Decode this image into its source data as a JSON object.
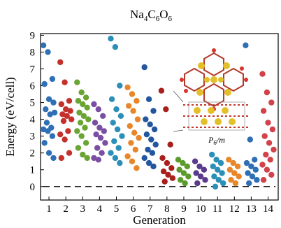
{
  "chart_data": {
    "type": "scatter",
    "title": "Na4C6O6",
    "xlabel": "Generation",
    "ylabel": "Energy (eV/cell)",
    "x_ticks": [
      1,
      2,
      3,
      4,
      5,
      6,
      7,
      8,
      9,
      10,
      11,
      12,
      13,
      14
    ],
    "y_ticks": [
      0,
      1,
      2,
      3,
      4,
      5,
      6,
      7,
      8,
      9
    ],
    "xlim": [
      0.5,
      14.6
    ],
    "ylim": [
      -0.8,
      9.1
    ],
    "reference_line": {
      "y": 0,
      "style": "dashed"
    },
    "inset_label": "P6/m",
    "grid": false,
    "series": [
      {
        "generation": 1,
        "color": "#2f6fb5",
        "energies": [
          8.4,
          8.0,
          6.4,
          6.1,
          5.2,
          5.0,
          4.6,
          4.3,
          4.4,
          3.8,
          3.5,
          3.4,
          3.3,
          3.0,
          2.6,
          2.0,
          1.7
        ]
      },
      {
        "generation": 2,
        "color": "#c4302b",
        "energies": [
          7.4,
          6.2,
          5.1,
          4.9,
          4.6,
          4.5,
          4.3,
          4.2,
          4.0,
          3.9,
          3.3,
          3.1,
          2.8,
          2.0,
          1.7
        ]
      },
      {
        "generation": 3,
        "color": "#6aa533",
        "energies": [
          6.2,
          5.6,
          5.3,
          5.1,
          4.9,
          4.7,
          4.4,
          4.2,
          4.0,
          3.8,
          3.5,
          3.3,
          3.0,
          2.6,
          2.3,
          1.9,
          1.7
        ]
      },
      {
        "generation": 4,
        "color": "#7a4fa3",
        "energies": [
          4.9,
          4.6,
          4.2,
          3.8,
          3.5,
          3.3,
          3.1,
          2.9,
          2.6,
          2.3,
          2.0,
          1.7,
          1.6
        ]
      },
      {
        "generation": 5,
        "color": "#2b8fb8",
        "energies": [
          8.8,
          8.3,
          6.0,
          5.2,
          4.6,
          4.2,
          3.8,
          3.4,
          3.0,
          2.7,
          2.3,
          2.0,
          1.7,
          1.4
        ]
      },
      {
        "generation": 6,
        "color": "#e8862a",
        "energies": [
          5.9,
          5.5,
          5.1,
          4.8,
          4.5,
          4.0,
          3.6,
          3.2,
          2.9,
          2.6,
          2.2,
          1.8,
          1.5,
          1.1
        ]
      },
      {
        "generation": 7,
        "color": "#22569e",
        "energies": [
          7.1,
          5.2,
          4.5,
          4.0,
          3.7,
          3.4,
          3.1,
          2.8,
          2.5,
          2.2,
          2.0,
          1.7,
          1.4,
          1.2
        ]
      },
      {
        "generation": 8,
        "color": "#a8201b",
        "energies": [
          5.7,
          4.6,
          2.5,
          1.7,
          1.4,
          1.1,
          0.9,
          0.7,
          0.5,
          0.3
        ]
      },
      {
        "generation": 9,
        "color": "#5b9b2b",
        "energies": [
          1.6,
          1.4,
          1.2,
          1.0,
          0.8,
          0.6,
          0.4,
          0.2
        ]
      },
      {
        "generation": 10,
        "color": "#5a3a8c",
        "energies": [
          1.5,
          1.2,
          1.0,
          0.8,
          0.6,
          0.4,
          0.2
        ]
      },
      {
        "generation": 11,
        "color": "#2b8fb8",
        "energies": [
          1.9,
          1.6,
          1.4,
          1.2,
          1.0,
          0.8,
          0.6,
          0.4,
          0.2,
          0.0
        ]
      },
      {
        "generation": 12,
        "color": "#e8862a",
        "energies": [
          1.6,
          1.4,
          1.2,
          1.0,
          0.8,
          0.6,
          0.4,
          0.2
        ]
      },
      {
        "generation": 13,
        "color": "#2f6fb5",
        "energies": [
          8.4,
          2.8,
          1.6,
          1.4,
          1.2,
          1.0,
          0.8,
          0.6,
          0.4,
          0.2
        ]
      },
      {
        "generation": 14,
        "color": "#d1424a",
        "energies": [
          6.7,
          5.6,
          5.0,
          4.5,
          3.8,
          3.4,
          3.0,
          2.6,
          2.2,
          1.9,
          1.6,
          1.3,
          1.0,
          0.7,
          0.4
        ]
      }
    ]
  }
}
